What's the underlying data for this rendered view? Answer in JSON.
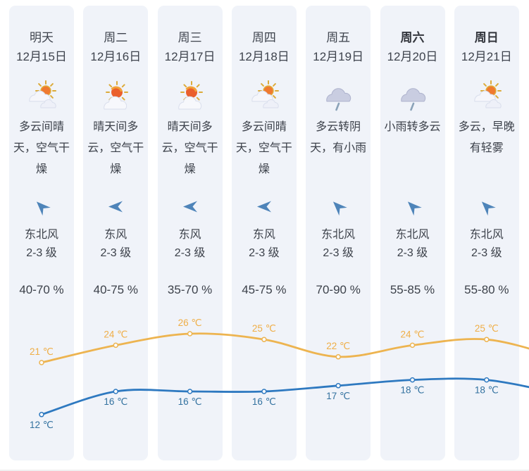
{
  "columns": [
    {
      "day": "明天",
      "bold": false,
      "date": "12月15日",
      "icon": "sun-behind-two-clouds",
      "desc": "多云间晴天，空气干燥",
      "wind_dir": "东北风",
      "wind_level": "2-3 级",
      "wind_arrow": "sw",
      "humidity": "40-70 %"
    },
    {
      "day": "周二",
      "bold": false,
      "date": "12月16日",
      "icon": "sun-behind-cloud",
      "desc": "晴天间多云，空气干燥",
      "wind_dir": "东风",
      "wind_level": "2-3 级",
      "wind_arrow": "w",
      "humidity": "40-75 %"
    },
    {
      "day": "周三",
      "bold": false,
      "date": "12月17日",
      "icon": "sun-behind-cloud",
      "desc": "晴天间多云，空气干燥",
      "wind_dir": "东风",
      "wind_level": "2-3 级",
      "wind_arrow": "w",
      "humidity": "35-70 %"
    },
    {
      "day": "周四",
      "bold": false,
      "date": "12月18日",
      "icon": "sun-behind-two-clouds",
      "desc": "多云间晴天，空气干燥",
      "wind_dir": "东风",
      "wind_level": "2-3 级",
      "wind_arrow": "w",
      "humidity": "45-75 %"
    },
    {
      "day": "周五",
      "bold": false,
      "date": "12月19日",
      "icon": "rain-cloud",
      "desc": "多云转阴天，有小雨",
      "wind_dir": "东北风",
      "wind_level": "2-3 级",
      "wind_arrow": "sw",
      "humidity": "70-90 %"
    },
    {
      "day": "周六",
      "bold": true,
      "date": "12月20日",
      "icon": "rain-cloud",
      "desc": "小雨转多云",
      "wind_dir": "东北风",
      "wind_level": "2-3 级",
      "wind_arrow": "sw",
      "humidity": "55-85 %"
    },
    {
      "day": "周日",
      "bold": true,
      "date": "12月21日",
      "icon": "sun-behind-two-clouds",
      "desc": "多云，早晚有轻雾",
      "wind_dir": "东北风",
      "wind_level": "2-3 级",
      "wind_arrow": "sw",
      "humidity": "55-80 %"
    }
  ],
  "chart_data": {
    "type": "line",
    "unit": "℃",
    "x_tick_labels_visible": false,
    "grid": false,
    "legend": "none",
    "series": [
      {
        "name": "high",
        "values": [
          21,
          24,
          26,
          25,
          22,
          24,
          25
        ],
        "color": "#edb450",
        "label_color": "#efae47"
      },
      {
        "name": "low",
        "values": [
          12,
          16,
          16,
          16,
          17,
          18,
          18
        ],
        "color": "#2e79c0",
        "label_color": "#32719f"
      }
    ]
  },
  "colors": {
    "column_background": "#f0f3f9",
    "text": "#3c414a",
    "wind_arrow": "#4e84b9"
  }
}
